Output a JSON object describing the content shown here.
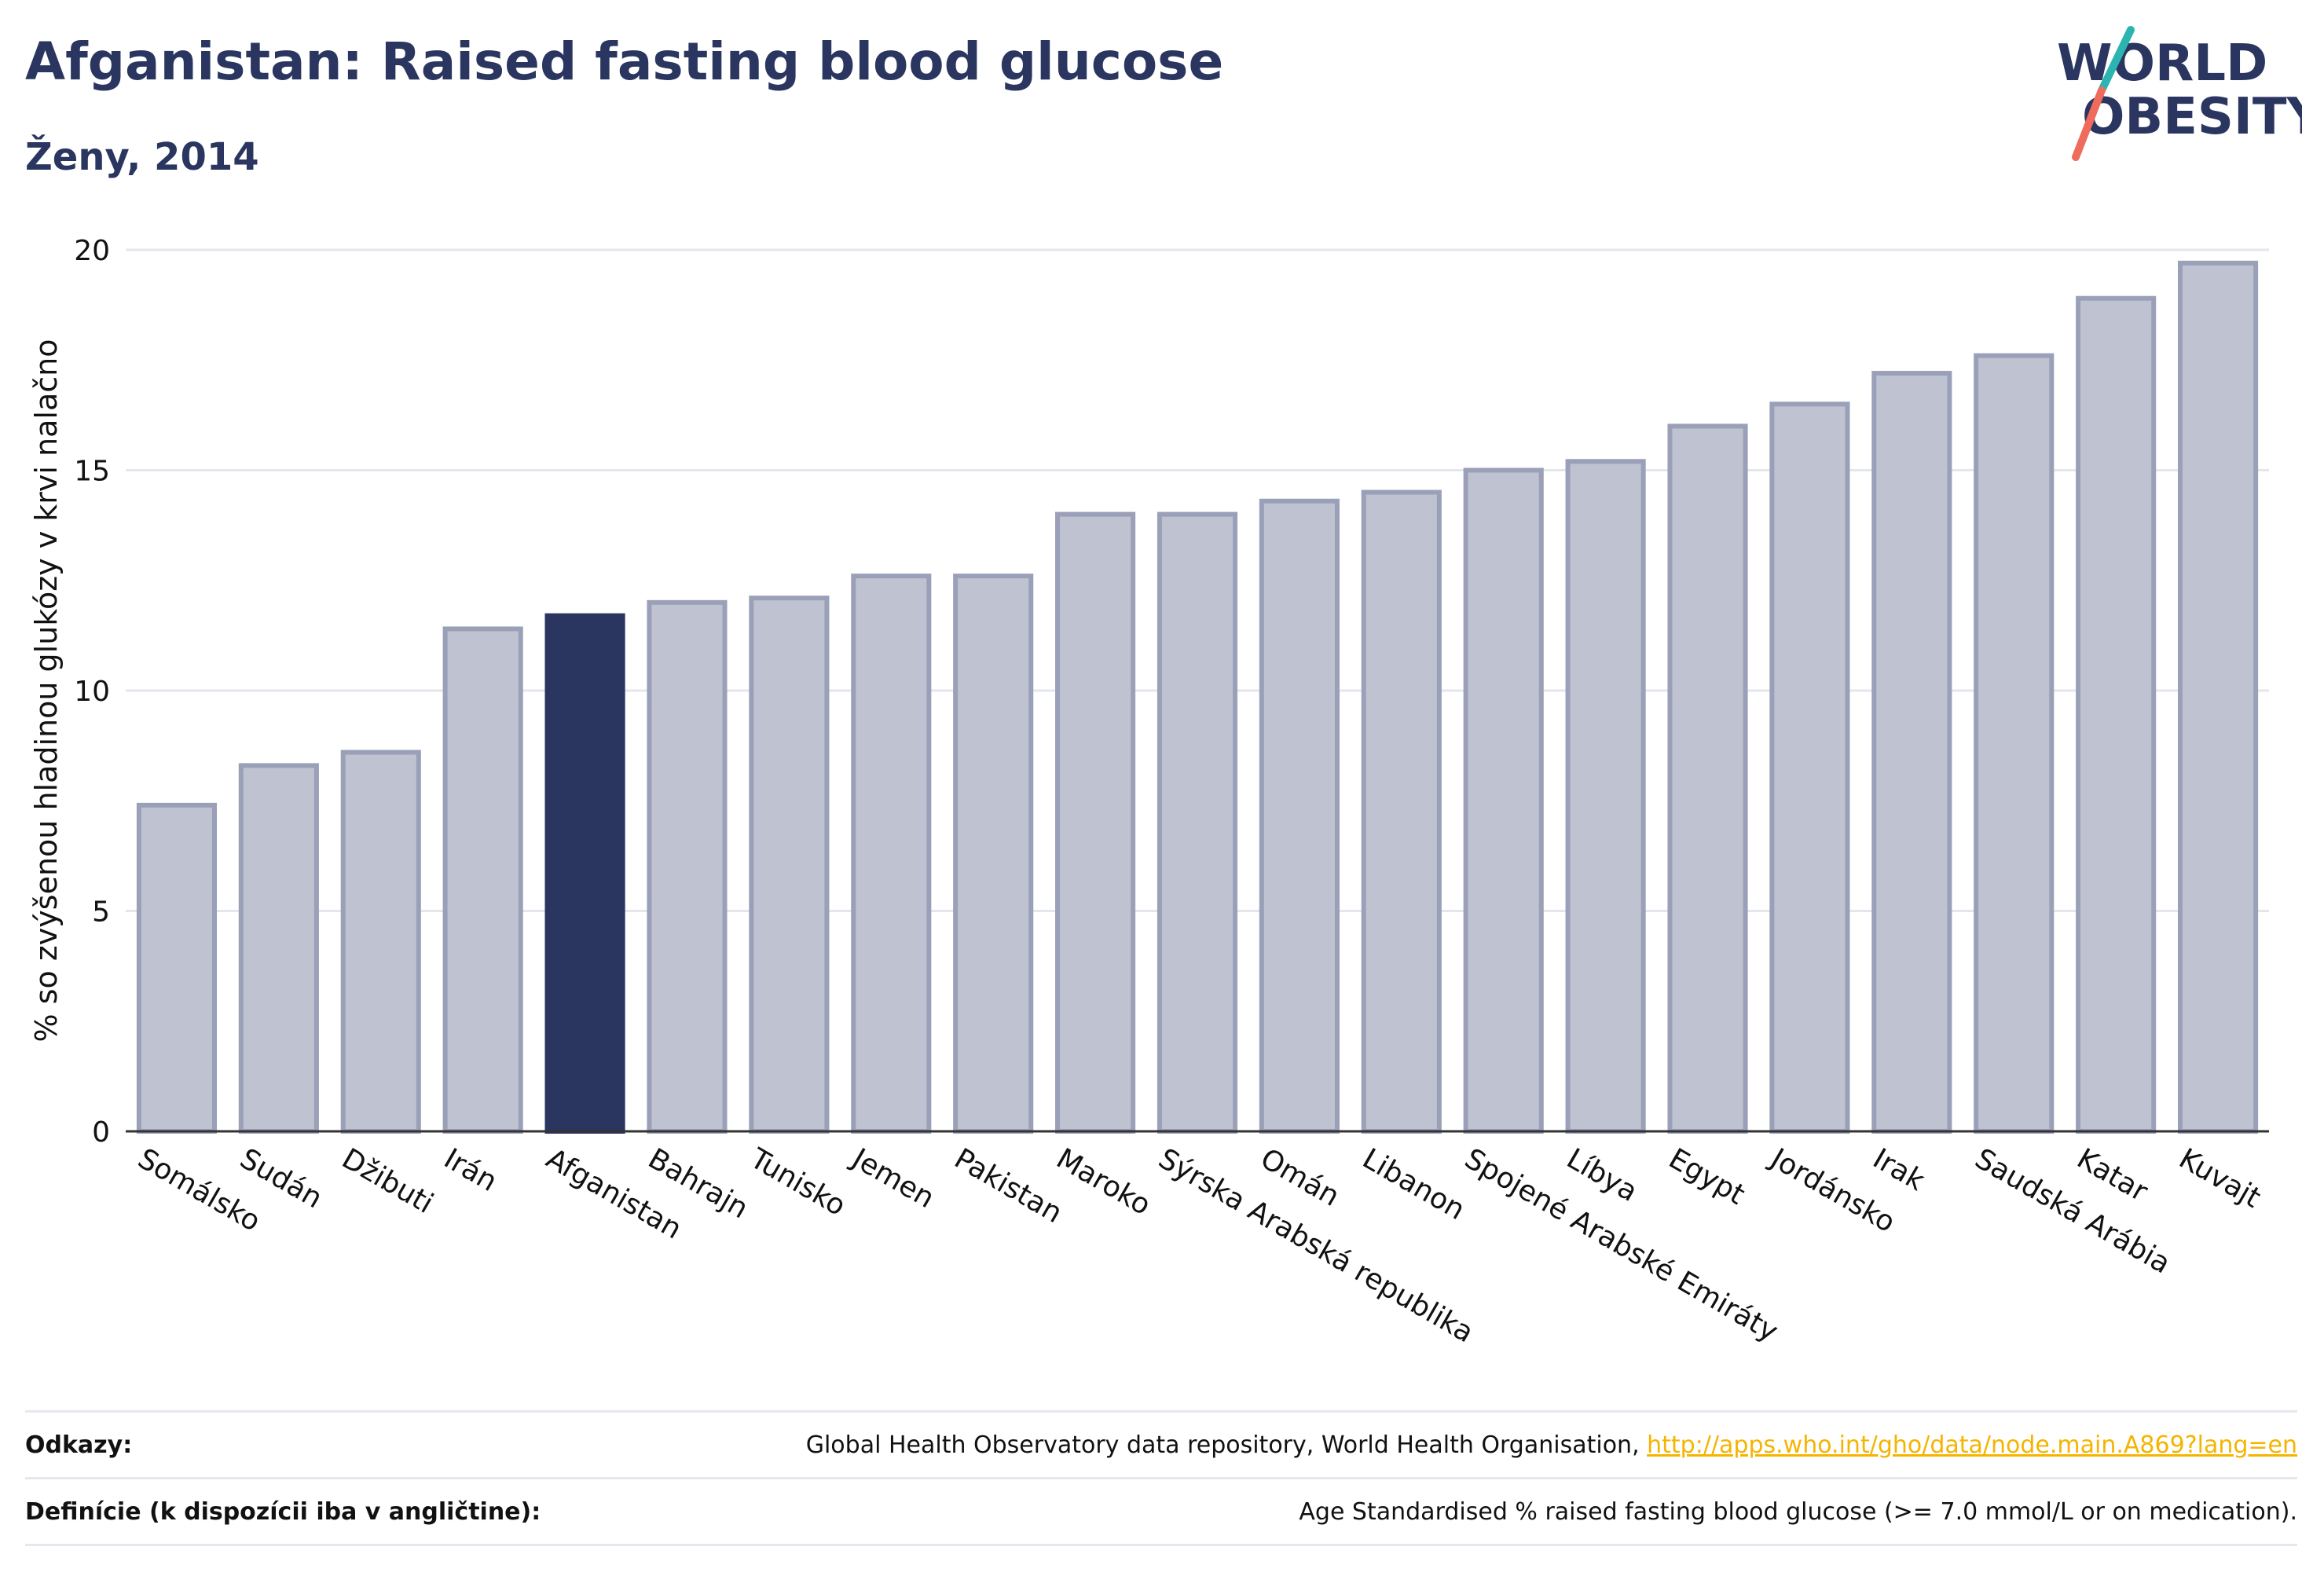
{
  "header": {
    "title": "Afganistan: Raised fasting blood glucose",
    "subtitle": "Ženy, 2014"
  },
  "logo": {
    "line1": "WORLD",
    "line2": "OBESITY"
  },
  "colors": {
    "highlight_bar": "#2b3660",
    "other_bar_fill": "#bfc2d0",
    "other_bar_stroke": "#9aa0b8",
    "text_dark": "#2b3660",
    "link": "#f5b400",
    "logo_teal": "#2cb5b0",
    "logo_coral": "#ef6b5b"
  },
  "chart_data": {
    "type": "bar",
    "ylabel": "% so zvýšenou hladinou glukózy v krvi nalačno",
    "ylim": [
      0,
      20
    ],
    "yticks": [
      0,
      5,
      10,
      15,
      20
    ],
    "grid": true,
    "highlight": "Afganistan",
    "categories": [
      "Somálsko",
      "Sudán",
      "Džibuti",
      "Irán",
      "Afganistan",
      "Bahrajn",
      "Tunisko",
      "Jemen",
      "Pakistan",
      "Maroko",
      "Sýrska Arabská republika",
      "Omán",
      "Libanon",
      "Spojené Arabské Emiráty",
      "Líbya",
      "Egypt",
      "Jordánsko",
      "Irak",
      "Saudská Arábia",
      "Katar",
      "Kuvajt"
    ],
    "values": [
      7.4,
      8.3,
      8.6,
      11.4,
      11.7,
      12.0,
      12.1,
      12.6,
      12.6,
      14.0,
      14.0,
      14.3,
      14.5,
      15.0,
      15.2,
      16.0,
      16.5,
      17.2,
      17.6,
      18.9,
      19.7
    ]
  },
  "footer": {
    "references_label": "Odkazy:",
    "references_text": "Global Health Observatory data repository, World Health Organisation, ",
    "references_link": "http://apps.who.int/gho/data/node.main.A869?lang=en",
    "definitions_label": "Definície (k dispozícii iba v angličtine):",
    "definitions_text": "Age Standardised % raised fasting blood glucose (>= 7.0 mmol/L or on medication)."
  }
}
